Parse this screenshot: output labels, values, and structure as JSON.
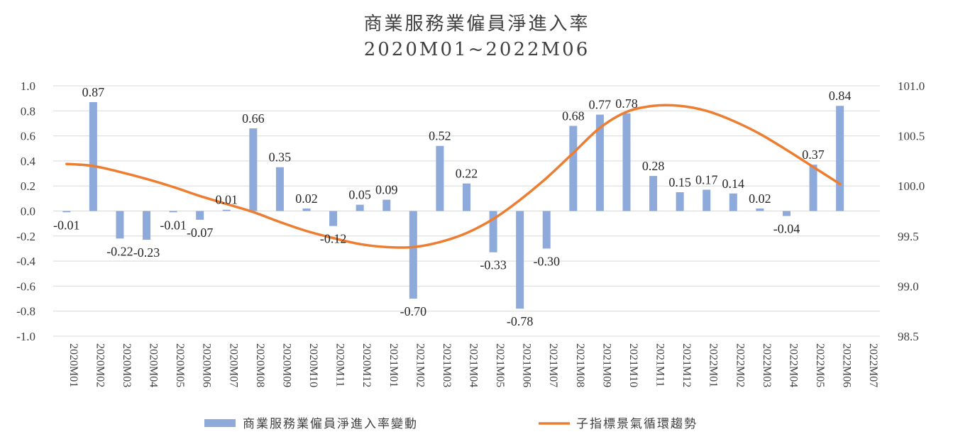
{
  "chart_data": {
    "type": "bar",
    "title": "商業服務業僱員淨進入率",
    "subtitle": "2020M01~2022M06",
    "categories": [
      "2020M01",
      "2020M02",
      "2020M03",
      "2020M04",
      "2020M05",
      "2020M06",
      "2020M07",
      "2020M08",
      "2020M09",
      "2020M10",
      "2020M11",
      "2020M12",
      "2021M01",
      "2021M02",
      "2021M03",
      "2021M04",
      "2021M05",
      "2021M06",
      "2021M07",
      "2021M08",
      "2021M09",
      "2021M10",
      "2021M11",
      "2021M12",
      "2022M01",
      "2022M02",
      "2022M03",
      "2022M04",
      "2022M05",
      "2022M06",
      "2022M07"
    ],
    "series": [
      {
        "name": "商業服務業僱員淨進入率變動",
        "type": "bar",
        "axis": "left",
        "color": "#8eaadb",
        "values": [
          -0.01,
          0.87,
          -0.22,
          -0.23,
          -0.01,
          -0.07,
          0.01,
          0.66,
          0.35,
          0.02,
          -0.12,
          0.05,
          0.09,
          -0.7,
          0.52,
          0.22,
          -0.33,
          -0.78,
          -0.3,
          0.68,
          0.77,
          0.78,
          0.28,
          0.15,
          0.17,
          0.14,
          0.02,
          -0.04,
          0.37,
          0.84,
          null
        ],
        "labels": [
          "-0.01",
          "0.87",
          "-0.22",
          "-0.23",
          "-0.01",
          "-0.07",
          "0.01",
          "0.66",
          "0.35",
          "0.02",
          "-0.12",
          "0.05",
          "0.09",
          "-0.70",
          "0.52",
          "0.22",
          "-0.33",
          "-0.78",
          "-0.30",
          "0.68",
          "0.77",
          "0.78",
          "0.28",
          "0.15",
          "0.17",
          "0.14",
          "0.02",
          "-0.04",
          "0.37",
          "0.84",
          ""
        ]
      },
      {
        "name": "子指標景氣循環趨勢",
        "type": "line",
        "axis": "right",
        "color": "#ed7d31",
        "values": [
          100.22,
          100.2,
          100.14,
          100.07,
          99.99,
          99.9,
          99.82,
          99.74,
          99.64,
          99.55,
          99.48,
          99.42,
          99.39,
          99.39,
          99.44,
          99.53,
          99.67,
          99.86,
          100.08,
          100.33,
          100.58,
          100.74,
          100.8,
          100.8,
          100.75,
          100.65,
          100.52,
          100.36,
          100.19,
          100.02,
          null
        ]
      }
    ],
    "y_left": {
      "min": -1.0,
      "max": 1.0,
      "ticks": [
        "1.0",
        "0.8",
        "0.6",
        "0.4",
        "0.2",
        "0.0",
        "-0.2",
        "-0.4",
        "-0.6",
        "-0.8",
        "-1.0"
      ]
    },
    "y_right": {
      "min": 98.5,
      "max": 101.0,
      "ticks": [
        "101.0",
        "100.5",
        "100.0",
        "99.5",
        "99.0",
        "98.5"
      ]
    },
    "grid": true,
    "legend_position": "bottom"
  }
}
